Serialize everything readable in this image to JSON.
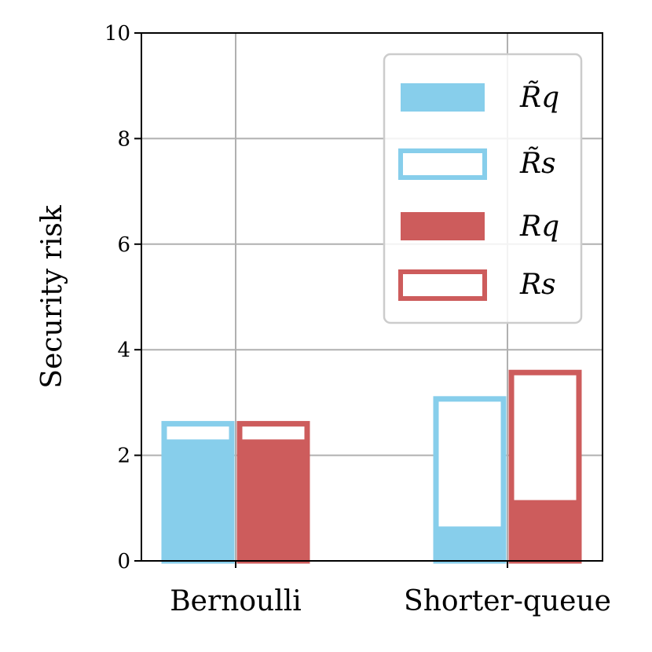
{
  "chart_data": {
    "type": "bar",
    "categories": [
      "Bernoulli",
      "Shorter-queue"
    ],
    "ylabel": "Security risk",
    "xlabel": "",
    "ylim": [
      0,
      10
    ],
    "yticks": [
      0,
      2,
      4,
      6,
      8,
      10
    ],
    "grid": true,
    "legend_placement": "top-right",
    "series": [
      {
        "name": "R̃q",
        "values": [
          2.3,
          0.65
        ],
        "color": "#87CEEB",
        "style": "filled",
        "group": "approx"
      },
      {
        "name": "R̃s",
        "values": [
          2.65,
          3.12
        ],
        "color": "#87CEEB",
        "style": "outline",
        "group": "approx"
      },
      {
        "name": "Rq",
        "values": [
          2.3,
          1.15
        ],
        "color": "#CD5C5C",
        "style": "filled",
        "group": "exact"
      },
      {
        "name": "Rs",
        "values": [
          2.65,
          3.62
        ],
        "color": "#CD5C5C",
        "style": "outline",
        "group": "exact"
      }
    ]
  }
}
